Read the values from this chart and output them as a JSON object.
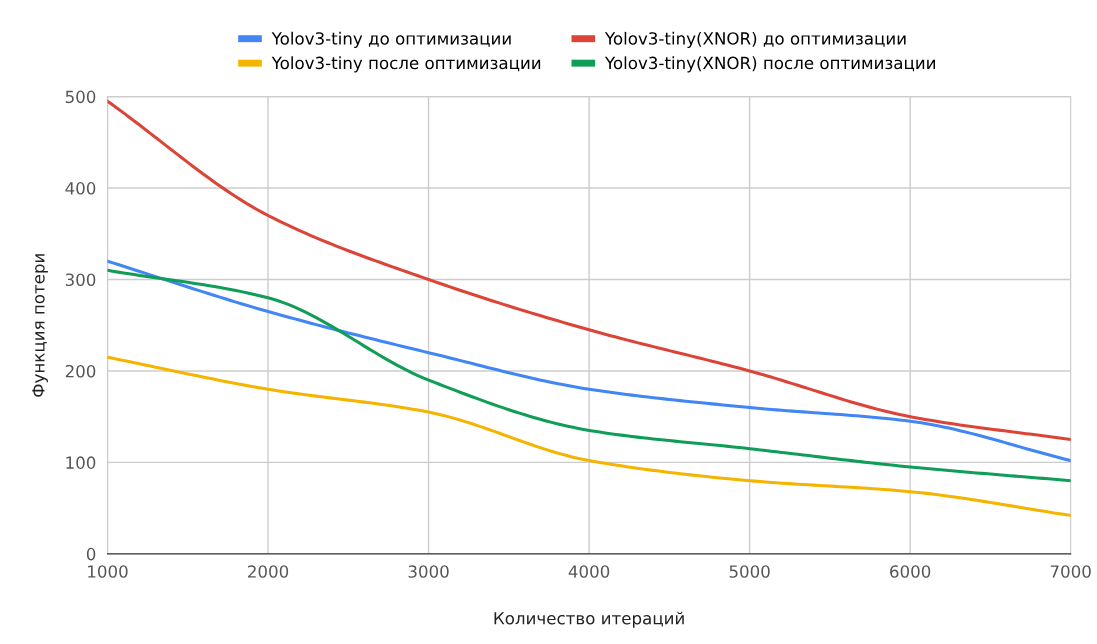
{
  "chart_data": {
    "type": "line",
    "xlabel": "Количество итераций",
    "ylabel": "Функция потери",
    "x": [
      1000,
      2000,
      3000,
      4000,
      5000,
      6000,
      7000
    ],
    "series": [
      {
        "name": "Yolov3-tiny до оптимизации",
        "color": "#4285f4",
        "values": [
          320,
          265,
          220,
          180,
          160,
          145,
          102
        ]
      },
      {
        "name": "Yolov3-tiny(XNOR) до оптимизации",
        "color": "#db4437",
        "values": [
          495,
          370,
          300,
          245,
          200,
          150,
          125
        ]
      },
      {
        "name": "Yolov3-tiny после оптимизации",
        "color": "#f4b400",
        "values": [
          215,
          180,
          155,
          102,
          80,
          68,
          42
        ]
      },
      {
        "name": "Yolov3-tiny(XNOR) после оптимизации",
        "color": "#0f9d58",
        "values": [
          310,
          280,
          190,
          135,
          115,
          95,
          80
        ]
      }
    ],
    "xlim": [
      1000,
      7000
    ],
    "xticks": [
      1000,
      2000,
      3000,
      4000,
      5000,
      6000,
      7000
    ],
    "ylim": [
      0,
      500
    ],
    "yticks": [
      0,
      100,
      200,
      300,
      400,
      500
    ],
    "grid": true,
    "legend": "top",
    "marker": "none",
    "line_style": "solid"
  }
}
